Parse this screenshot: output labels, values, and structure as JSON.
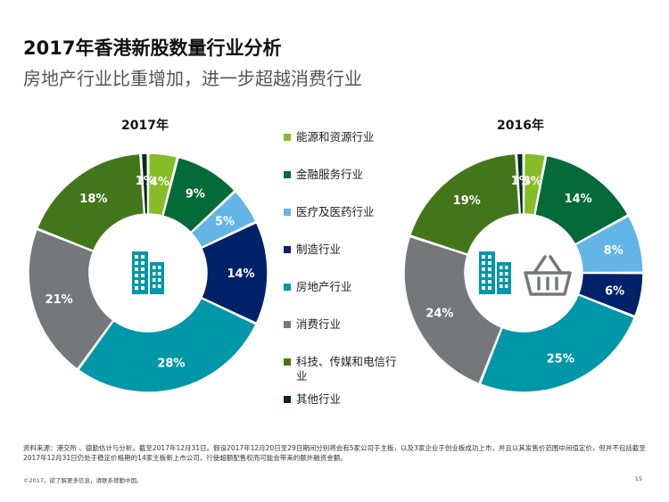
{
  "title": "2017年香港新股数量行业分析",
  "subtitle": "房地产行业比重增加，进一步超越消费行业",
  "legend": [
    {
      "label": "能源和资源行业",
      "color": "#86bc25"
    },
    {
      "label": "金融服务行业",
      "color": "#046a38"
    },
    {
      "label": "医疗及医药行业",
      "color": "#62b5e5"
    },
    {
      "label": "制造行业",
      "color": "#012169"
    },
    {
      "label": "房地产行业",
      "color": "#0097a9"
    },
    {
      "label": "消费行业",
      "color": "#75787b"
    },
    {
      "label": "科技、传媒和电信行业",
      "color": "#43761a"
    },
    {
      "label": "其他行业",
      "color": "#012b1c"
    }
  ],
  "chart_data": [
    {
      "type": "pie",
      "title": "2017年",
      "categories": [
        "能源和资源行业",
        "金融服务行业",
        "医疗及医药行业",
        "制造行业",
        "房地产行业",
        "消费行业",
        "科技、传媒和电信行业",
        "其他行业"
      ],
      "values": [
        4,
        9,
        5,
        14,
        28,
        21,
        18,
        1
      ],
      "labels": [
        "4%",
        "9%",
        "5%",
        "14%",
        "28%",
        "21%",
        "18%",
        "1%"
      ],
      "center_icons": [
        "building-icon"
      ]
    },
    {
      "type": "pie",
      "title": "2016年",
      "categories": [
        "能源和资源行业",
        "金融服务行业",
        "医疗及医药行业",
        "制造行业",
        "房地产行业",
        "消费行业",
        "科技、传媒和电信行业",
        "其他行业"
      ],
      "values": [
        3,
        14,
        8,
        6,
        25,
        24,
        19,
        1
      ],
      "labels": [
        "3%",
        "14%",
        "8%",
        "6%",
        "25%",
        "24%",
        "19%",
        "1%"
      ],
      "center_icons": [
        "building-icon",
        "basket-icon"
      ]
    }
  ],
  "footnote": "资料来源：港交所 、德勤估计与分析。截至2017年12月31日。假设2017年12月20日至29日期间分别将会有5家公司于主板，以及3家企业于创业板成功上市，并且以其发售价范围中间值定价，但并不包括截至2017年12月31日仍处于稳定价格期的14家主板新上市公司，行使超额配售权而可能会带来的额外融资金额。",
  "copyright": "©2017。欲了解更多信息，请联系德勤中国。",
  "page_number": "15"
}
